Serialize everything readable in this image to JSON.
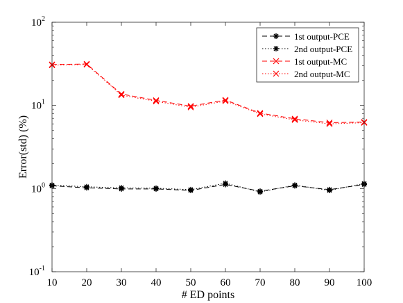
{
  "chart_data": {
    "type": "line",
    "title": "",
    "xlabel": "# ED points",
    "ylabel": "Error(std) (%)",
    "yscale": "log",
    "x": [
      10,
      20,
      30,
      40,
      50,
      60,
      70,
      80,
      90,
      100
    ],
    "xlim": [
      10,
      100
    ],
    "ylim": [
      0.1,
      100
    ],
    "x_ticks": [
      "10",
      "20",
      "30",
      "40",
      "50",
      "60",
      "70",
      "80",
      "90",
      "100"
    ],
    "y_ticks": [
      {
        "value": 0.1,
        "base": "10",
        "exp": "-1"
      },
      {
        "value": 1,
        "base": "10",
        "exp": "0"
      },
      {
        "value": 10,
        "base": "10",
        "exp": "1"
      },
      {
        "value": 100,
        "base": "10",
        "exp": "2"
      }
    ],
    "grid": false,
    "legend_position": "top-right",
    "series": [
      {
        "name": "1st output-PCE",
        "values": [
          1.08,
          1.02,
          0.99,
          0.99,
          0.95,
          1.12,
          0.93,
          1.08,
          0.97,
          1.12
        ],
        "color": "#000000",
        "dash": "dashed",
        "marker": "star"
      },
      {
        "name": "2nd output-PCE",
        "values": [
          1.1,
          1.05,
          1.02,
          1.01,
          0.97,
          1.16,
          0.91,
          1.1,
          0.95,
          1.15
        ],
        "color": "#000000",
        "dash": "dotted",
        "marker": "star"
      },
      {
        "name": "1st output-MC",
        "values": [
          31,
          31.5,
          13.7,
          11.5,
          9.8,
          11.6,
          8.1,
          6.9,
          6.2,
          6.3
        ],
        "color": "#ff0000",
        "dash": "dashed",
        "marker": "x"
      },
      {
        "name": "2nd output-MC",
        "values": [
          30.5,
          31,
          13.3,
          11.2,
          9.5,
          11.3,
          7.9,
          6.7,
          6.0,
          6.2
        ],
        "color": "#ff0000",
        "dash": "dotted",
        "marker": "x"
      }
    ]
  }
}
